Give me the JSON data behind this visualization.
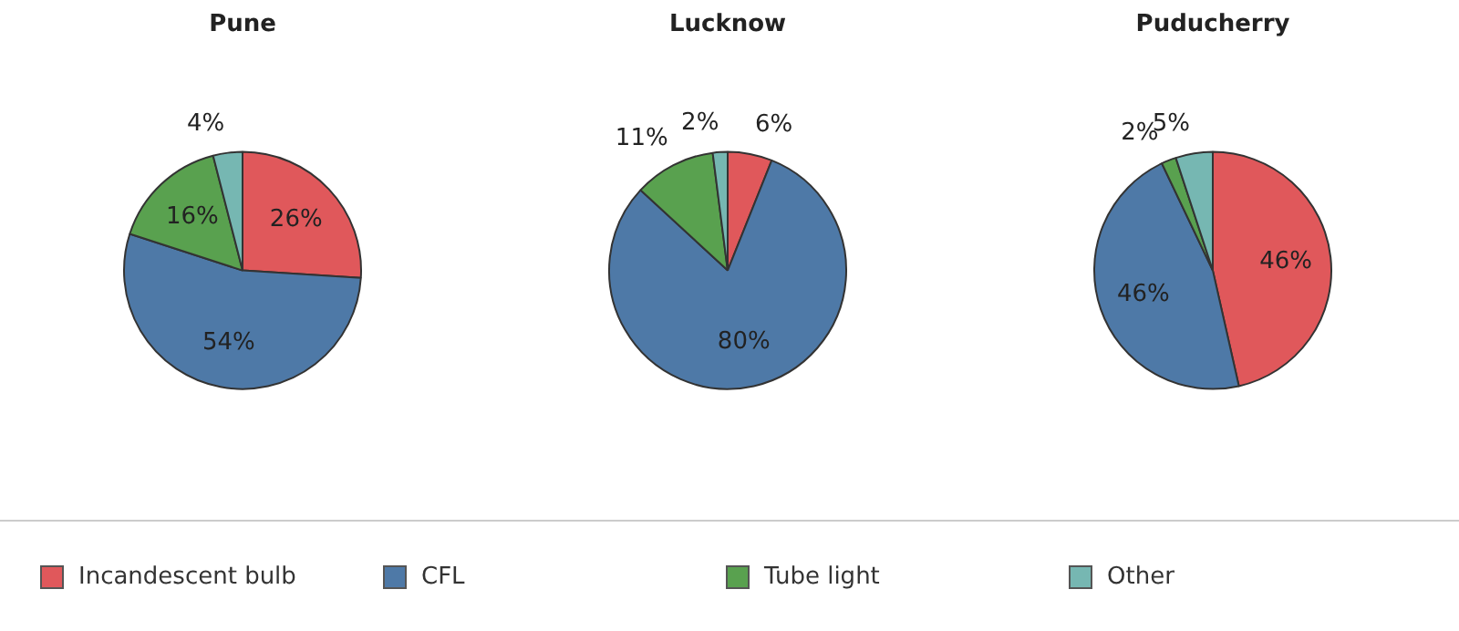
{
  "chart_data": [
    {
      "type": "pie",
      "title": "Pune",
      "categories": [
        "Incandescent bulb",
        "CFL",
        "Tube light",
        "Other"
      ],
      "values": [
        26,
        54,
        16,
        4
      ],
      "value_labels": [
        "26%",
        "54%",
        "16%",
        "4%"
      ],
      "colors": [
        "#e0585b",
        "#4e79a7",
        "#59a14f",
        "#76b7b2"
      ],
      "legend": "bottom"
    },
    {
      "type": "pie",
      "title": "Lucknow",
      "values": [
        6,
        80,
        11,
        2
      ],
      "value_labels": [
        "6%",
        "80%",
        "11%",
        "2%"
      ],
      "colors": [
        "#e0585b",
        "#4e79a7",
        "#59a14f",
        "#76b7b2"
      ]
    },
    {
      "type": "pie",
      "title": "Puducherry",
      "values": [
        46,
        46,
        2,
        5
      ],
      "value_labels": [
        "46%",
        "46%",
        "2%",
        "5%"
      ],
      "colors": [
        "#e0585b",
        "#4e79a7",
        "#59a14f",
        "#76b7b2"
      ]
    }
  ]
}
